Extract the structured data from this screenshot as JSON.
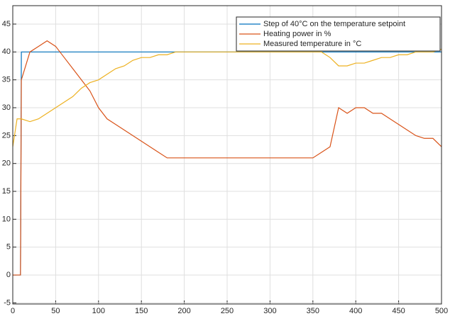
{
  "chart_data": {
    "type": "line",
    "x": [
      0,
      5,
      9,
      10,
      20,
      30,
      40,
      50,
      60,
      70,
      80,
      90,
      100,
      110,
      120,
      130,
      140,
      150,
      160,
      170,
      180,
      190,
      200,
      210,
      220,
      230,
      240,
      250,
      260,
      270,
      280,
      290,
      300,
      310,
      320,
      330,
      340,
      350,
      360,
      370,
      380,
      390,
      400,
      410,
      420,
      430,
      440,
      450,
      460,
      470,
      480,
      490,
      500
    ],
    "series": [
      {
        "name": "Step of 40°C on  the temperature setpoint",
        "color": "#0072bd",
        "values": [
          0,
          0,
          0,
          40,
          40,
          40,
          40,
          40,
          40,
          40,
          40,
          40,
          40,
          40,
          40,
          40,
          40,
          40,
          40,
          40,
          40,
          40,
          40,
          40,
          40,
          40,
          40,
          40,
          40,
          40,
          40,
          40,
          40,
          40,
          40,
          40,
          40,
          40,
          40,
          40,
          40,
          40,
          40,
          40,
          40,
          40,
          40,
          40,
          40,
          40,
          40,
          40,
          40
        ]
      },
      {
        "name": "Heating power in %",
        "color": "#d95319",
        "values": [
          0,
          0,
          0,
          35,
          40,
          41,
          42,
          41,
          39,
          37,
          35,
          33,
          30,
          28,
          27,
          26,
          25,
          24,
          23,
          22,
          21,
          21,
          21,
          21,
          21,
          21,
          21,
          21,
          21,
          21,
          21,
          21,
          21,
          21,
          21,
          21,
          21,
          21,
          22,
          23,
          30,
          29,
          30,
          30,
          29,
          29,
          28,
          27,
          26,
          25,
          24.5,
          24.5,
          23
        ]
      },
      {
        "name": "Measured temperature in °C",
        "color": "#edb120",
        "values": [
          23,
          28,
          28,
          28,
          27.5,
          28,
          29,
          30,
          31,
          32,
          33.5,
          34.5,
          35,
          36,
          37,
          37.5,
          38.5,
          39,
          39,
          39.5,
          39.5,
          40,
          40,
          40,
          40,
          40,
          40,
          40,
          40,
          40,
          40,
          40,
          40,
          40,
          40,
          40,
          40,
          40,
          40,
          39,
          37.5,
          37.5,
          38,
          38,
          38.5,
          39,
          39,
          39.5,
          39.5,
          40,
          40,
          40,
          40.5
        ]
      }
    ],
    "xlim": [
      0,
      500
    ],
    "xticks": [
      0,
      50,
      100,
      150,
      200,
      250,
      300,
      350,
      400,
      450,
      500
    ],
    "ylim": [
      -5.2,
      48.3
    ],
    "yticks": [
      -5,
      0,
      5,
      10,
      15,
      20,
      25,
      30,
      35,
      40,
      45
    ],
    "grid": true,
    "legend": "northeast"
  }
}
